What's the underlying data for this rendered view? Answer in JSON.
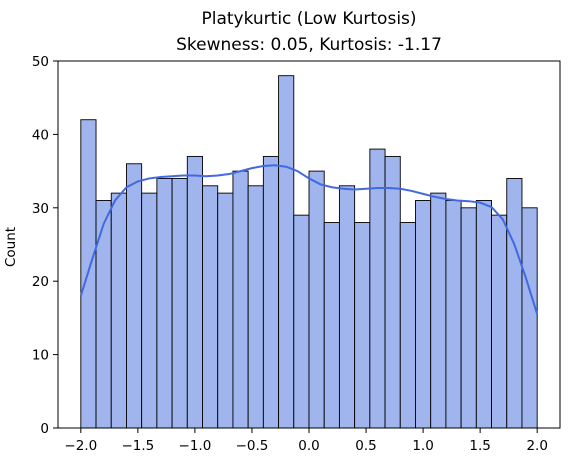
{
  "chart_data": {
    "type": "bar",
    "title_line1": "Platykurtic (Low Kurtosis)",
    "title_line2": "Skewness: 0.05, Kurtosis: -1.17",
    "xlabel": "",
    "ylabel": "Count",
    "xlim": [
      -2.2,
      2.2
    ],
    "ylim": [
      0,
      50
    ],
    "xticks": [
      "−2.0",
      "−1.5",
      "−1.0",
      "−0.5",
      "0.0",
      "0.5",
      "1.0",
      "1.5",
      "2.0"
    ],
    "xtick_values": [
      -2.0,
      -1.5,
      -1.0,
      -0.5,
      0.0,
      0.5,
      1.0,
      1.5,
      2.0
    ],
    "yticks": [
      "0",
      "10",
      "20",
      "30",
      "40",
      "50"
    ],
    "ytick_values": [
      0,
      10,
      20,
      30,
      40,
      50
    ],
    "bin_start": -2.0,
    "bin_end": 2.0,
    "bin_count": 30,
    "values": [
      42,
      31,
      32,
      36,
      32,
      34,
      34,
      37,
      33,
      32,
      35,
      33,
      37,
      48,
      29,
      35,
      28,
      33,
      28,
      38,
      37,
      28,
      31,
      32,
      31,
      30,
      31,
      29,
      34,
      30
    ],
    "kde": {
      "x": [
        -2.0,
        -1.9,
        -1.8,
        -1.7,
        -1.6,
        -1.5,
        -1.4,
        -1.3,
        -1.2,
        -1.1,
        -1.0,
        -0.9,
        -0.8,
        -0.7,
        -0.6,
        -0.5,
        -0.4,
        -0.3,
        -0.2,
        -0.1,
        0.0,
        0.1,
        0.2,
        0.3,
        0.4,
        0.5,
        0.6,
        0.7,
        0.8,
        0.9,
        1.0,
        1.1,
        1.2,
        1.3,
        1.4,
        1.5,
        1.6,
        1.7,
        1.8,
        1.9,
        2.0
      ],
      "y": [
        18.0,
        23.0,
        27.8,
        31.0,
        32.8,
        33.6,
        34.0,
        34.2,
        34.3,
        34.4,
        34.4,
        34.3,
        34.4,
        34.6,
        35.0,
        35.4,
        35.7,
        35.8,
        35.6,
        35.0,
        34.0,
        33.2,
        32.8,
        32.6,
        32.5,
        32.6,
        32.7,
        32.7,
        32.6,
        32.3,
        31.9,
        31.5,
        31.2,
        31.0,
        30.9,
        30.7,
        30.1,
        28.4,
        25.0,
        20.5,
        15.5
      ]
    },
    "bar_color": "#a0b4ee",
    "bar_edge_color": "#000000",
    "kde_color": "#4169e1",
    "grid": false,
    "legend": "none"
  }
}
